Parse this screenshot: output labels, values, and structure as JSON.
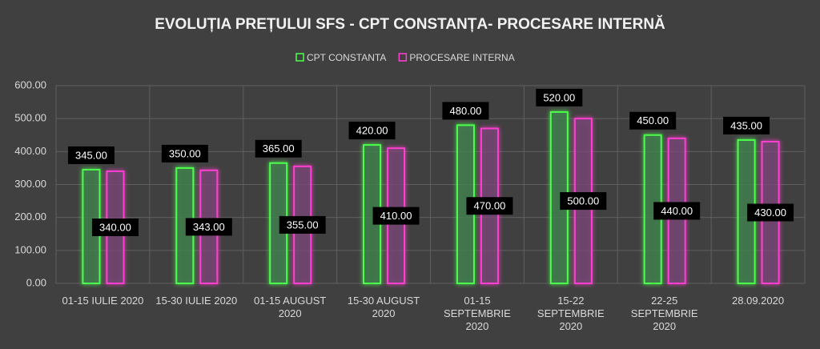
{
  "chart_data": {
    "type": "bar",
    "title": "EVOLUȚIA PREȚULUI SFS - CPT CONSTANȚA- PROCESARE INTERNĂ",
    "categories": [
      "01-15 IULIE 2020",
      "15-30 IULIE 2020",
      "01-15 AUGUST 2020",
      "15-30 AUGUST 2020",
      "01-15 SEPTEMBRIE 2020",
      "15-22 SEPTEMBRIE 2020",
      "22-25 SEPTEMBRIE 2020",
      "28.09.2020"
    ],
    "series": [
      {
        "name": "CPT CONSTANTA",
        "color": "#4cff4c",
        "values": [
          345,
          350,
          365,
          420,
          480,
          520,
          450,
          435
        ],
        "value_labels": [
          "345.00",
          "350.00",
          "365.00",
          "420.00",
          "480.00",
          "520.00",
          "450.00",
          "435.00"
        ]
      },
      {
        "name": "PROCESARE INTERNA",
        "color": "#ff3fd0",
        "values": [
          340,
          343,
          355,
          410,
          470,
          500,
          440,
          430
        ],
        "value_labels": [
          "340.00",
          "343.00",
          "355.00",
          "410.00",
          "470.00",
          "500.00",
          "440.00",
          "430.00"
        ]
      }
    ],
    "ylim": [
      0,
      600
    ],
    "yticks": [
      {
        "value": 0,
        "label": "0.00"
      },
      {
        "value": 100,
        "label": "100.00"
      },
      {
        "value": 200,
        "label": "200.00"
      },
      {
        "value": 300,
        "label": "300.00"
      },
      {
        "value": 400,
        "label": "400.00"
      },
      {
        "value": 500,
        "label": "500.00"
      },
      {
        "value": 600,
        "label": "600.00"
      }
    ],
    "grid": true,
    "legend": "top"
  }
}
